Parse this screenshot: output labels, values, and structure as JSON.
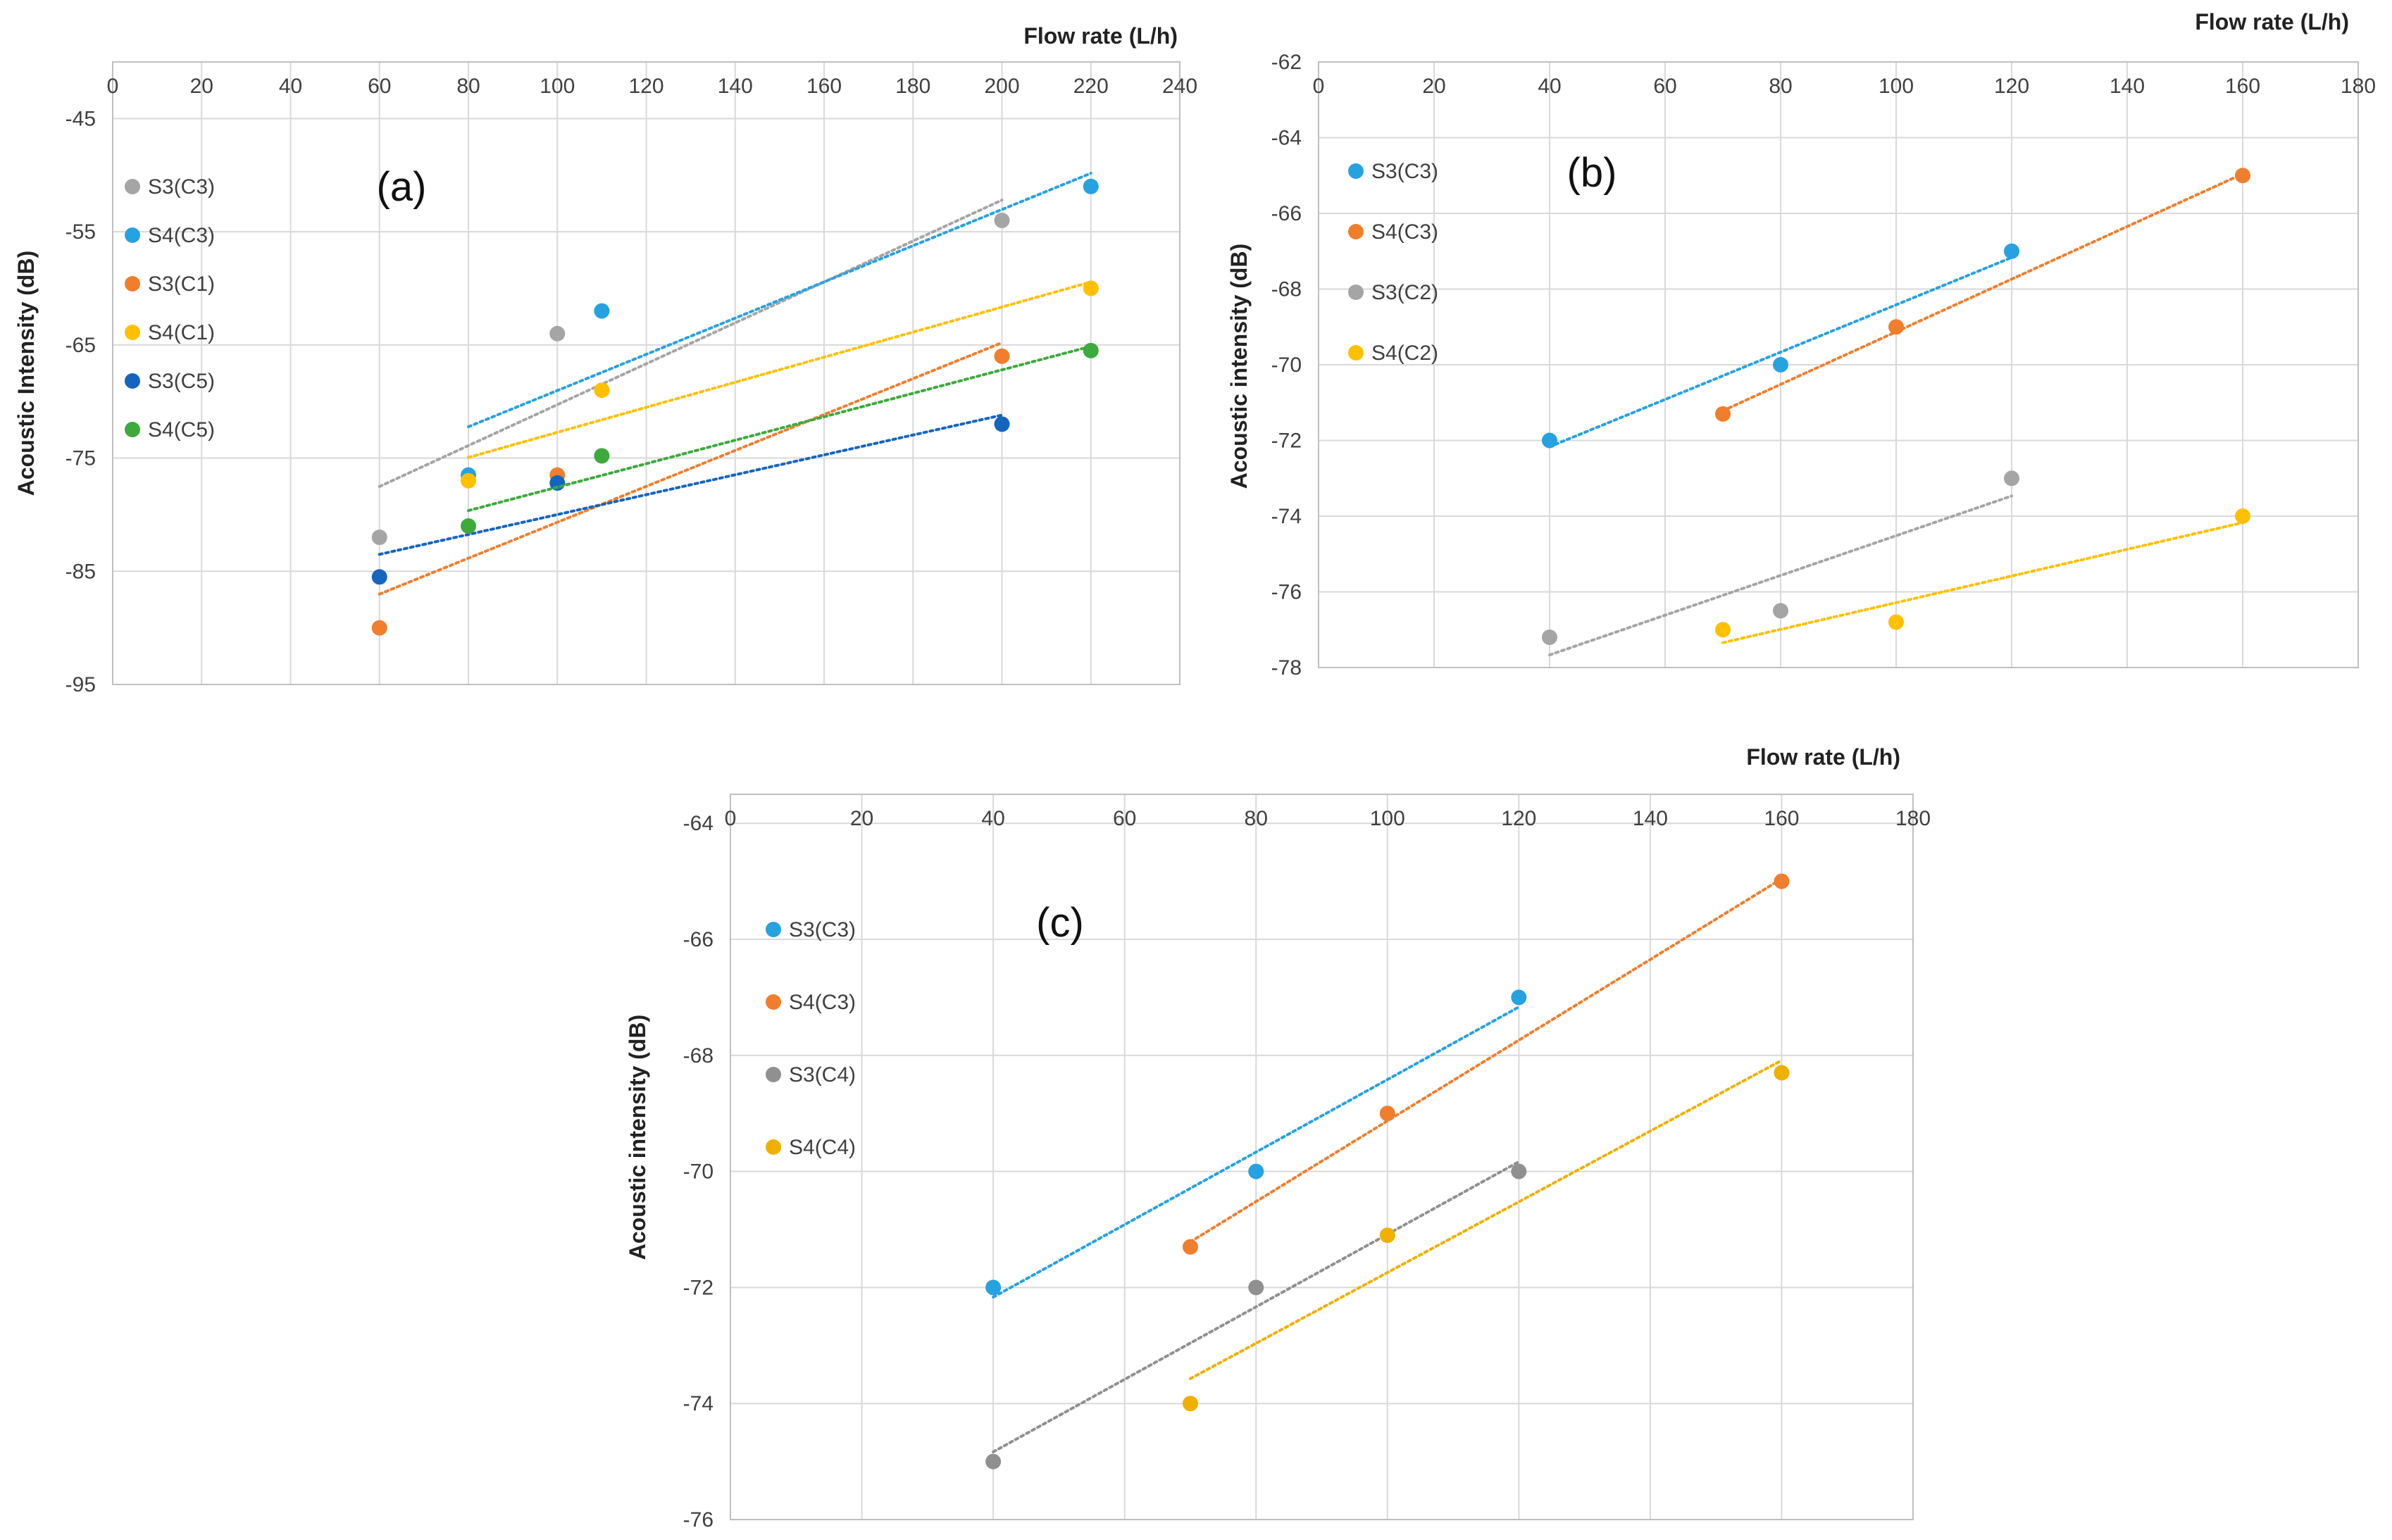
{
  "chart_data": [
    {
      "type": "scatter",
      "panel_label": "(a)",
      "xlabel": "Flow rate (L/h)",
      "ylabel": "Acoustic Intensity (dB)",
      "xlim": [
        0,
        240
      ],
      "ylim": [
        -95,
        -40
      ],
      "x_ticks": [
        0,
        20,
        40,
        60,
        80,
        100,
        120,
        140,
        160,
        180,
        200,
        220,
        240
      ],
      "y_ticks": [
        -45,
        -55,
        -65,
        -75,
        -85,
        -95
      ],
      "legend_position": "left",
      "trendlines": "linear (dotted)",
      "series": [
        {
          "name": "S3(C3)",
          "color": "#a5a5a5",
          "x": [
            60,
            100,
            200
          ],
          "y": [
            -82,
            -64,
            -54
          ]
        },
        {
          "name": "S4(C3)",
          "color": "#27a2e0",
          "x": [
            80,
            110,
            220
          ],
          "y": [
            -76.5,
            -62,
            -51
          ]
        },
        {
          "name": "S3(C1)",
          "color": "#f07e2d",
          "x": [
            60,
            100,
            200
          ],
          "y": [
            -90,
            -76.5,
            -66
          ]
        },
        {
          "name": "S4(C1)",
          "color": "#ffc000",
          "x": [
            80,
            110,
            220
          ],
          "y": [
            -77,
            -69,
            -60
          ]
        },
        {
          "name": "S3(C5)",
          "color": "#1565c0",
          "x": [
            60,
            100,
            200
          ],
          "y": [
            -85.5,
            -77.2,
            -72
          ]
        },
        {
          "name": "S4(C5)",
          "color": "#3caa3c",
          "x": [
            80,
            110,
            220
          ],
          "y": [
            -81,
            -74.8,
            -65.5
          ]
        }
      ]
    },
    {
      "type": "scatter",
      "panel_label": "(b)",
      "xlabel": "Flow rate (L/h)",
      "ylabel": "Acoustic intensity (dB)",
      "xlim": [
        0,
        180
      ],
      "ylim": [
        -78,
        -62
      ],
      "x_ticks": [
        0,
        20,
        40,
        60,
        80,
        100,
        120,
        140,
        160,
        180
      ],
      "y_ticks": [
        -62,
        -64,
        -66,
        -68,
        -70,
        -72,
        -74,
        -76,
        -78
      ],
      "legend_position": "left",
      "trendlines": "linear (dotted)",
      "series": [
        {
          "name": "S3(C3)",
          "color": "#27a2e0",
          "x": [
            40,
            80,
            120
          ],
          "y": [
            -72,
            -70,
            -67
          ]
        },
        {
          "name": "S4(C3)",
          "color": "#f07e2d",
          "x": [
            70,
            100,
            160
          ],
          "y": [
            -71.3,
            -69,
            -65
          ]
        },
        {
          "name": "S3(C2)",
          "color": "#a5a5a5",
          "x": [
            40,
            80,
            120
          ],
          "y": [
            -77.2,
            -76.5,
            -73
          ]
        },
        {
          "name": "S4(C2)",
          "color": "#ffc000",
          "x": [
            70,
            100,
            160
          ],
          "y": [
            -77,
            -76.8,
            -74
          ]
        }
      ]
    },
    {
      "type": "scatter",
      "panel_label": "(c)",
      "xlabel": "Flow rate (L/h)",
      "ylabel": "Acoustic intensity (dB)",
      "xlim": [
        0,
        180
      ],
      "ylim": [
        -76,
        -63.5
      ],
      "x_ticks": [
        0,
        20,
        40,
        60,
        80,
        100,
        120,
        140,
        160,
        180
      ],
      "y_ticks": [
        -64,
        -66,
        -68,
        -70,
        -72,
        -74,
        -76
      ],
      "legend_position": "left",
      "trendlines": "linear (dotted)",
      "series": [
        {
          "name": "S3(C3)",
          "color": "#27a2e0",
          "x": [
            40,
            80,
            120
          ],
          "y": [
            -72,
            -70,
            -67
          ]
        },
        {
          "name": "S4(C3)",
          "color": "#f07e2d",
          "x": [
            70,
            100,
            160
          ],
          "y": [
            -71.3,
            -69,
            -65
          ]
        },
        {
          "name": "S3(C4)",
          "color": "#909090",
          "x": [
            40,
            80,
            120
          ],
          "y": [
            -75,
            -72,
            -70
          ]
        },
        {
          "name": "S4(C4)",
          "color": "#f0b000",
          "x": [
            70,
            100,
            160
          ],
          "y": [
            -74,
            -71.1,
            -68.3
          ]
        }
      ]
    }
  ]
}
